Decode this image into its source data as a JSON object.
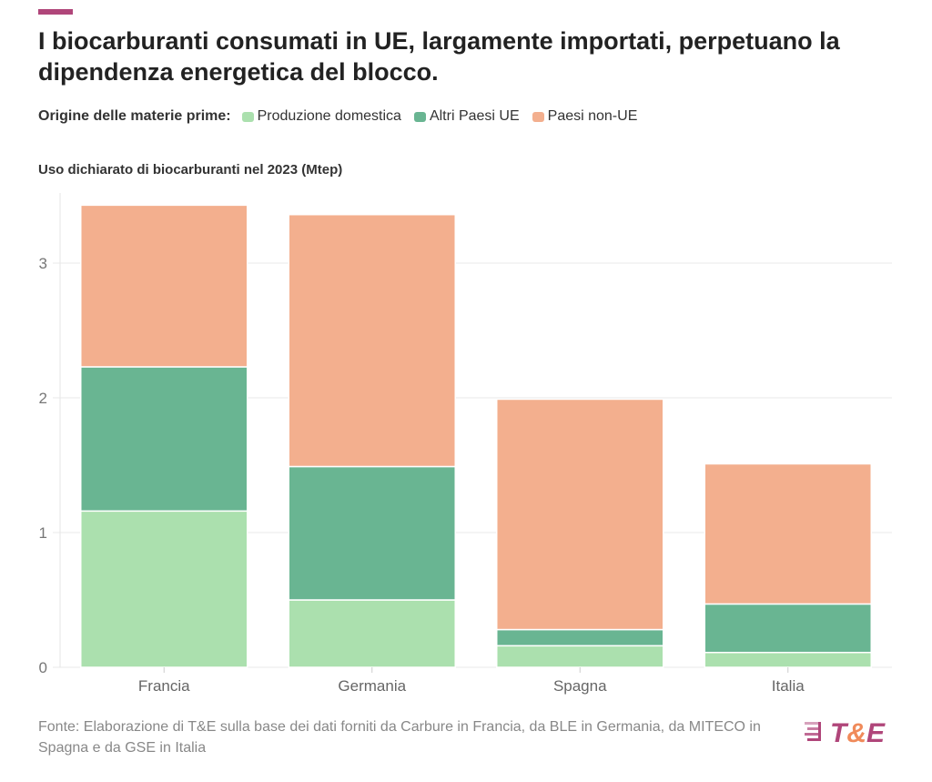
{
  "title": "I biocarburanti consumati in UE, largamente importati, perpetuano la dipendenza energetica del blocco.",
  "legend_title": "Origine delle materie prime:",
  "subtitle": "Uso dichiarato di biocarburanti nel 2023 (Mtep)",
  "source": "Fonte: Elaborazione di T&E sulla base dei dati forniti da Carbure in Francia, da BLE in Germania, da MITECO in Spagna e da GSE in Italia",
  "logo_text": "T&E",
  "colors": {
    "accent": "#b0467a",
    "logo_orange": "#f08a5a"
  },
  "chart_data": {
    "type": "bar",
    "stacked": true,
    "categories": [
      "Francia",
      "Germania",
      "Spagna",
      "Italia"
    ],
    "series": [
      {
        "name": "Produzione domestica",
        "color": "#abe0ae",
        "values": [
          1.16,
          0.5,
          0.16,
          0.11
        ]
      },
      {
        "name": "Altri Paesi UE",
        "color": "#69b592",
        "values": [
          1.07,
          0.99,
          0.12,
          0.36
        ]
      },
      {
        "name": "Paesi non-UE",
        "color": "#f3af8e",
        "values": [
          1.2,
          1.87,
          1.71,
          1.04
        ]
      }
    ],
    "yticks": [
      0,
      1,
      2,
      3
    ],
    "ylim": [
      0,
      3.5
    ],
    "grid": true,
    "legend_placement": "top"
  }
}
